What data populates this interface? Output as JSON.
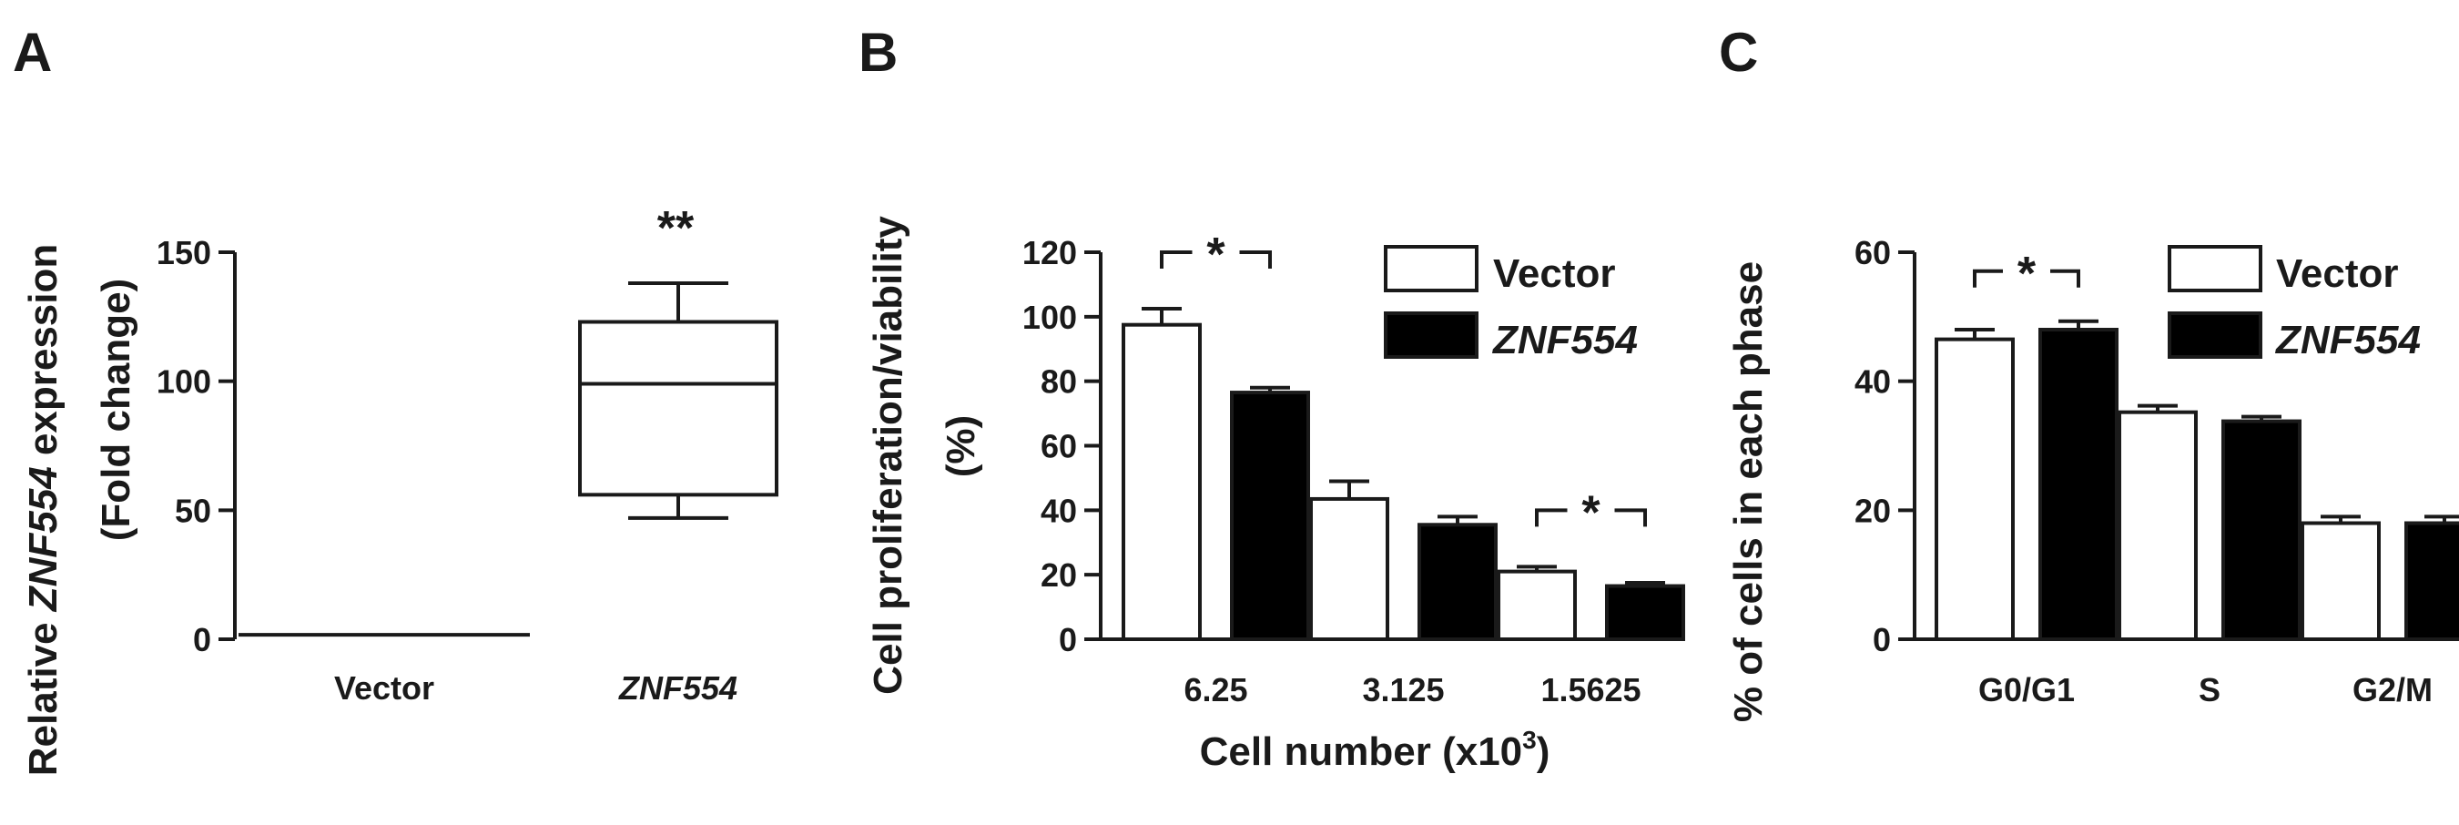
{
  "colors": {
    "ink": "#1a1a1a",
    "open": "#ffffff",
    "filled": "#000000"
  },
  "chart_data": [
    {
      "panel": "A",
      "type": "box",
      "ylabel_prefix": "Relative ",
      "ylabel_gene": "ZNF554",
      "ylabel_suffix": " expression",
      "ylabel_line2": "(Fold change)",
      "ylim": [
        0,
        150
      ],
      "yticks": [
        "0",
        "50",
        "100",
        "150"
      ],
      "categories": [
        "Vector",
        "ZNF554"
      ],
      "boxes": [
        {
          "category": "Vector",
          "min": 1,
          "q1": 1,
          "median": 1,
          "q3": 1,
          "max": 1
        },
        {
          "category": "ZNF554",
          "min": 47,
          "q1": 56,
          "median": 99,
          "q3": 123,
          "max": 138
        }
      ],
      "significance": [
        {
          "category": "ZNF554",
          "label": "**"
        }
      ]
    },
    {
      "panel": "B",
      "type": "bar",
      "ylabel_line1": "Cell proliferation/viability",
      "ylabel_line2": "(%)",
      "xlabel": "Cell number (x10",
      "xlabel_sup": "3",
      "xlabel_end": ")",
      "ylim": [
        0,
        120
      ],
      "yticks": [
        "0",
        "20",
        "40",
        "60",
        "80",
        "100",
        "120"
      ],
      "categories": [
        "6.25",
        "3.125",
        "1.5625"
      ],
      "legend": [
        "Vector",
        "ZNF554"
      ],
      "series": [
        {
          "name": "Vector",
          "values": [
            97.5,
            43.5,
            21
          ],
          "errors": [
            5,
            5.5,
            1.5
          ]
        },
        {
          "name": "ZNF554",
          "values": [
            76.5,
            35.5,
            16.5
          ],
          "errors": [
            1.5,
            2.5,
            1
          ]
        }
      ],
      "significance": [
        {
          "category_index": 0,
          "label": "*"
        },
        {
          "category_index": 2,
          "label": "*"
        }
      ]
    },
    {
      "panel": "C",
      "type": "bar",
      "ylabel": "% of cells in each phase",
      "ylim": [
        0,
        60
      ],
      "yticks": [
        "0",
        "20",
        "40",
        "60"
      ],
      "categories": [
        "G0/G1",
        "S",
        "G2/M"
      ],
      "legend": [
        "Vector",
        "ZNF554"
      ],
      "series": [
        {
          "name": "Vector",
          "values": [
            46.5,
            35.2,
            18
          ],
          "errors": [
            1.5,
            1,
            1
          ]
        },
        {
          "name": "ZNF554",
          "values": [
            48,
            33.8,
            18
          ],
          "errors": [
            1.3,
            0.7,
            1
          ]
        }
      ],
      "significance": [
        {
          "category_index": 0,
          "label": "*"
        }
      ]
    }
  ]
}
